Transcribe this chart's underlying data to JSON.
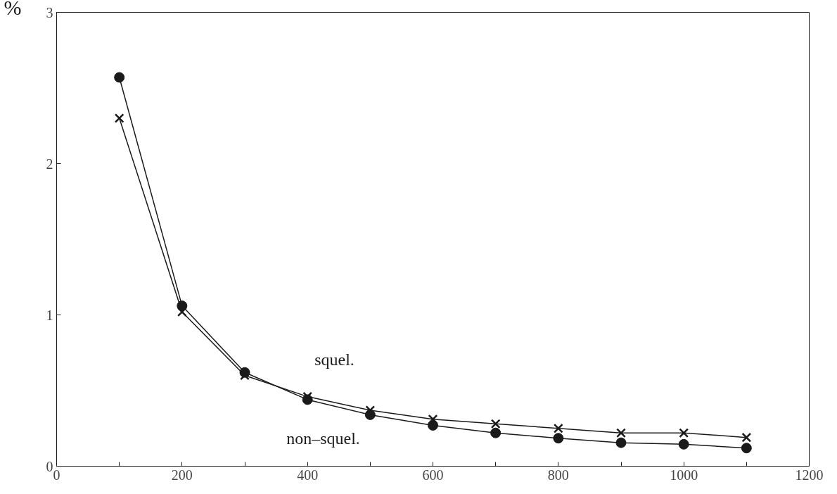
{
  "chart_data": {
    "type": "line",
    "ylabel": "%",
    "x": [
      100,
      200,
      300,
      400,
      500,
      600,
      700,
      800,
      900,
      1000,
      1100
    ],
    "series": [
      {
        "name": "squel.",
        "color": "#1a1a1a",
        "marker": "cross",
        "values": [
          2.3,
          1.02,
          0.6,
          0.46,
          0.37,
          0.31,
          0.28,
          0.25,
          0.22,
          0.22,
          0.19
        ]
      },
      {
        "name": "non–squel.",
        "color": "#1a1a1a",
        "marker": "circle",
        "values": [
          2.57,
          1.06,
          0.62,
          0.44,
          0.34,
          0.27,
          0.22,
          0.185,
          0.155,
          0.145,
          0.12
        ]
      }
    ],
    "xlim": [
      0,
      1200
    ],
    "ylim": [
      0,
      3
    ],
    "xticks": [
      0,
      {
        "value": 100,
        "label": null
      },
      200,
      {
        "value": 300,
        "label": null
      },
      400,
      {
        "value": 500,
        "label": null
      },
      600,
      {
        "value": 700,
        "label": null
      },
      800,
      {
        "value": 900,
        "label": null
      },
      1000,
      {
        "value": 1100,
        "label": null
      },
      1200
    ],
    "yticks": [
      0,
      1,
      2,
      3
    ],
    "grid": false,
    "line_style": "solid"
  }
}
